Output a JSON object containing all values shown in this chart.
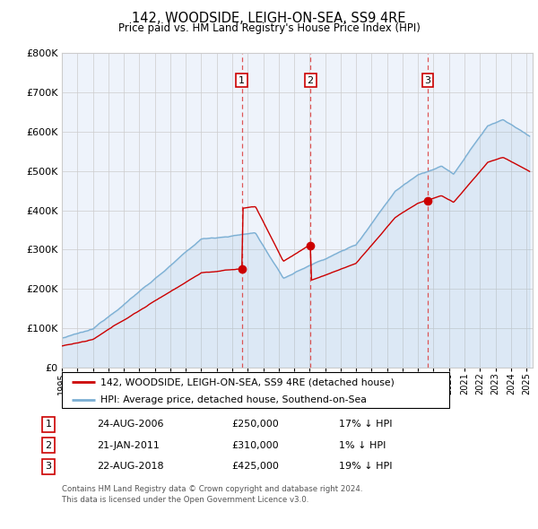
{
  "title": "142, WOODSIDE, LEIGH-ON-SEA, SS9 4RE",
  "subtitle": "Price paid vs. HM Land Registry's House Price Index (HPI)",
  "ylim": [
    0,
    800000
  ],
  "yticks": [
    0,
    100000,
    200000,
    300000,
    400000,
    500000,
    600000,
    700000,
    800000
  ],
  "legend_line1": "142, WOODSIDE, LEIGH-ON-SEA, SS9 4RE (detached house)",
  "legend_line2": "HPI: Average price, detached house, Southend-on-Sea",
  "sale1_date": "24-AUG-2006",
  "sale1_price": 250000,
  "sale1_hpi": "17% ↓ HPI",
  "sale2_date": "21-JAN-2011",
  "sale2_price": 310000,
  "sale2_hpi": "1% ↓ HPI",
  "sale3_date": "22-AUG-2018",
  "sale3_price": 425000,
  "sale3_hpi": "19% ↓ HPI",
  "footnote1": "Contains HM Land Registry data © Crown copyright and database right 2024.",
  "footnote2": "This data is licensed under the Open Government Licence v3.0.",
  "sale_color": "#cc0000",
  "hpi_color": "#7bafd4",
  "vline_color": "#dd4444",
  "background_color": "#ffffff",
  "grid_color": "#cccccc",
  "sale_years": [
    2006.625,
    2011.05,
    2018.625
  ],
  "sale_prices": [
    250000,
    310000,
    425000
  ]
}
